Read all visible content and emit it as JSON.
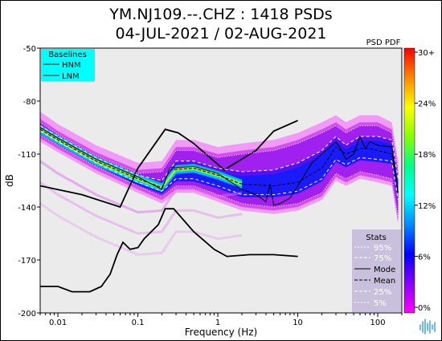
{
  "chart_data": {
    "type": "heatmap",
    "title": "YM.NJ109.--.CHZ : 1418 PSDs",
    "subtitle": "04-JUL-2021 / 02-AUG-2021",
    "xlabel": "Frequency (Hz)",
    "ylabel": "dB",
    "x_scale": "log",
    "xlim": [
      0.006,
      200
    ],
    "ylim": [
      -200,
      -50
    ],
    "x_ticks": [
      {
        "value": 0.01,
        "label": "0.01"
      },
      {
        "value": 0.1,
        "label": "0.1"
      },
      {
        "value": 1,
        "label": "1"
      },
      {
        "value": 10,
        "label": "10"
      },
      {
        "value": 100,
        "label": "100"
      }
    ],
    "y_ticks": [
      {
        "value": -50,
        "label": "-50"
      },
      {
        "value": -80,
        "label": "-80"
      },
      {
        "value": -110,
        "label": "-110"
      },
      {
        "value": -140,
        "label": "-140"
      },
      {
        "value": -170,
        "label": "-170"
      },
      {
        "value": -200,
        "label": "-200"
      }
    ],
    "colorbar": {
      "label": "PSD PDF",
      "ticks": [
        "30+",
        "24%",
        "18%",
        "12%",
        "6%",
        "0%"
      ],
      "stops": [
        "#ff00ff",
        "#8800ff",
        "#0000ff",
        "#0088ff",
        "#00ffff",
        "#00ff88",
        "#88ff00",
        "#ffff00",
        "#ff8800",
        "#ff0000"
      ]
    },
    "baselines": {
      "title": "Baselines",
      "entries": [
        "HNM",
        "LNM"
      ],
      "HNM": {
        "x": [
          0.006,
          0.02,
          0.06,
          0.1,
          0.22,
          0.32,
          0.5,
          1.2,
          3,
          5,
          10
        ],
        "y": [
          -128,
          -133,
          -140,
          -118,
          -96,
          -98,
          -104,
          -119,
          -108,
          -97,
          -91
        ]
      },
      "LNM": {
        "x": [
          0.006,
          0.01,
          0.015,
          0.025,
          0.035,
          0.045,
          0.055,
          0.065,
          0.08,
          0.1,
          0.12,
          0.18,
          0.22,
          0.28,
          0.5,
          0.9,
          1.3,
          2.5,
          5,
          10
        ],
        "y": [
          -185,
          -185,
          -188,
          -188,
          -185,
          -178,
          -167,
          -160,
          -164,
          -163,
          -158,
          -150,
          -141,
          -141,
          -154,
          -164,
          -168,
          -167,
          -167,
          -168
        ]
      }
    },
    "stats": {
      "title": "Stats",
      "labels": [
        "95%",
        "75%",
        "Mode",
        "Mean",
        "25%",
        "5%"
      ],
      "mode": {
        "x": [
          0.006,
          0.01,
          0.03,
          0.1,
          0.2,
          0.25,
          0.5,
          1,
          2,
          3,
          4,
          4.5,
          5,
          6,
          8,
          10,
          15,
          20,
          30,
          35,
          40,
          50,
          60,
          70,
          80,
          100,
          150,
          180
        ],
        "y": [
          -95,
          -101,
          -113,
          -123,
          -130,
          -118,
          -117,
          -121,
          -130,
          -133,
          -137,
          -127,
          -139,
          -138,
          -135,
          -128,
          -115,
          -110,
          -103,
          -108,
          -113,
          -110,
          -100,
          -107,
          -103,
          -105,
          -106,
          -132
        ]
      },
      "mean": {
        "x": [
          0.006,
          0.01,
          0.03,
          0.1,
          0.2,
          0.25,
          0.5,
          1,
          2,
          5,
          10,
          20,
          30,
          40,
          60,
          80,
          100,
          150,
          180
        ],
        "y": [
          -96,
          -102,
          -114,
          -124,
          -129,
          -119,
          -118,
          -122,
          -127,
          -128,
          -126,
          -118,
          -106,
          -110,
          -107,
          -107,
          -108,
          -110,
          -132
        ]
      },
      "p95": {
        "x": [
          0.006,
          0.01,
          0.03,
          0.1,
          0.2,
          0.3,
          0.5,
          1,
          2,
          5,
          10,
          20,
          30,
          40,
          60,
          100,
          150,
          180
        ],
        "y": [
          -92,
          -99,
          -111,
          -121,
          -120,
          -108,
          -108,
          -112,
          -110,
          -108,
          -104,
          -98,
          -94,
          -98,
          -94,
          -94,
          -98,
          -120
        ]
      },
      "p75": {
        "x": [
          0.006,
          0.01,
          0.03,
          0.1,
          0.2,
          0.3,
          0.5,
          1,
          2,
          5,
          10,
          20,
          30,
          40,
          60,
          100,
          150,
          180
        ],
        "y": [
          -94,
          -100,
          -112,
          -122,
          -125,
          -114,
          -114,
          -118,
          -120,
          -119,
          -115,
          -108,
          -100,
          -105,
          -100,
          -100,
          -102,
          -124
        ]
      },
      "p25": {
        "x": [
          0.006,
          0.01,
          0.03,
          0.1,
          0.2,
          0.3,
          0.5,
          1,
          2,
          5,
          10,
          20,
          30,
          40,
          60,
          100,
          150,
          180
        ],
        "y": [
          -97,
          -103,
          -115,
          -126,
          -131,
          -124,
          -124,
          -128,
          -133,
          -133,
          -131,
          -124,
          -113,
          -116,
          -112,
          -113,
          -114,
          -136
        ]
      },
      "p5": {
        "x": [
          0.006,
          0.01,
          0.03,
          0.1,
          0.2,
          0.3,
          0.5,
          1,
          2,
          5,
          10,
          20,
          30,
          40,
          60,
          100,
          150,
          180
        ],
        "y": [
          -99,
          -105,
          -117,
          -128,
          -134,
          -128,
          -128,
          -133,
          -138,
          -140,
          -138,
          -132,
          -121,
          -124,
          -120,
          -122,
          -124,
          -146
        ]
      }
    }
  }
}
